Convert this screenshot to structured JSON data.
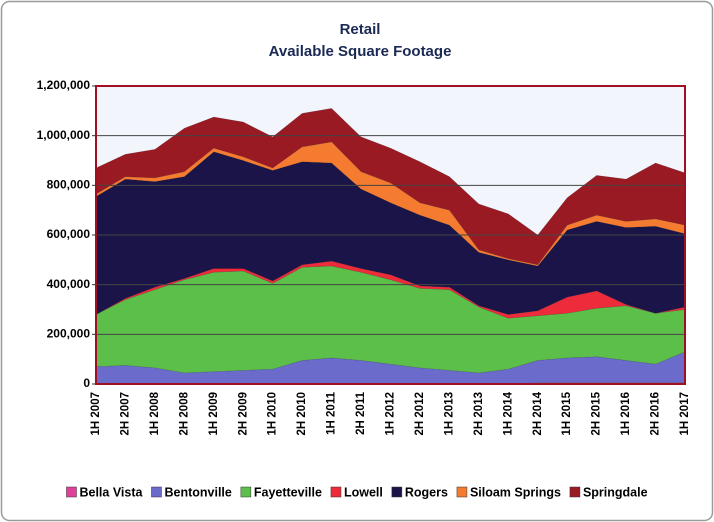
{
  "chart_data": {
    "type": "stacked_area",
    "title": "Retail",
    "subtitle": "Available Square Footage",
    "categories": [
      "1H 2007",
      "2H 2007",
      "1H 2008",
      "2H 2008",
      "1H 2009",
      "2H 2009",
      "1H 2010",
      "2H 2010",
      "1H 2011",
      "2H 2011",
      "1H 2012",
      "2H 2012",
      "1H 2013",
      "2H 2013",
      "1H 2014",
      "2H 2014",
      "1H 2015",
      "2H 2015",
      "1H 2016",
      "2H 2016",
      "1H 2017"
    ],
    "series": [
      {
        "name": "Bella Vista",
        "color": "#e0409a",
        "values": [
          0,
          0,
          0,
          0,
          0,
          0,
          0,
          0,
          0,
          0,
          0,
          0,
          0,
          0,
          0,
          5000,
          5000,
          5000,
          5000,
          5000,
          5000
        ]
      },
      {
        "name": "Bentonville",
        "color": "#6b6bcc",
        "values": [
          70000,
          75000,
          65000,
          45000,
          50000,
          55000,
          60000,
          95000,
          105000,
          95000,
          80000,
          65000,
          55000,
          45000,
          60000,
          90000,
          100000,
          105000,
          90000,
          75000,
          125000
        ]
      },
      {
        "name": "Fayetteville",
        "color": "#5cbf4a",
        "values": [
          210000,
          265000,
          315000,
          375000,
          400000,
          400000,
          345000,
          375000,
          370000,
          355000,
          340000,
          320000,
          325000,
          265000,
          205000,
          180000,
          180000,
          195000,
          220000,
          205000,
          170000
        ]
      },
      {
        "name": "Lowell",
        "color": "#ee2b3a",
        "values": [
          0,
          5000,
          10000,
          5000,
          15000,
          10000,
          10000,
          10000,
          20000,
          15000,
          20000,
          10000,
          10000,
          5000,
          15000,
          20000,
          65000,
          70000,
          5000,
          0,
          10000
        ]
      },
      {
        "name": "Rogers",
        "color": "#1a1449",
        "values": [
          475000,
          480000,
          425000,
          410000,
          470000,
          435000,
          445000,
          415000,
          395000,
          320000,
          290000,
          285000,
          250000,
          215000,
          220000,
          180000,
          270000,
          280000,
          310000,
          350000,
          295000
        ]
      },
      {
        "name": "Siloam Springs",
        "color": "#f47b30",
        "values": [
          10000,
          10000,
          15000,
          20000,
          15000,
          15000,
          10000,
          60000,
          85000,
          70000,
          80000,
          50000,
          60000,
          10000,
          5000,
          5000,
          20000,
          25000,
          25000,
          30000,
          35000
        ]
      },
      {
        "name": "Springdale",
        "color": "#9a1a24",
        "values": [
          105000,
          90000,
          115000,
          175000,
          125000,
          140000,
          125000,
          135000,
          135000,
          140000,
          140000,
          165000,
          135000,
          185000,
          180000,
          120000,
          110000,
          160000,
          170000,
          225000,
          210000
        ]
      }
    ],
    "ylim": [
      0,
      1200000
    ],
    "yticks": [
      0,
      {
        "value": 200000,
        "label": "200,000"
      },
      {
        "value": 400000,
        "label": "400,000"
      },
      {
        "value": 600000,
        "label": "600,000"
      },
      {
        "value": 800000,
        "label": "800,000"
      },
      {
        "value": 1000000,
        "label": "1,000,000"
      },
      {
        "value": 1200000,
        "label": "1,200,000"
      }
    ],
    "grid": true,
    "legend": "bottom"
  }
}
